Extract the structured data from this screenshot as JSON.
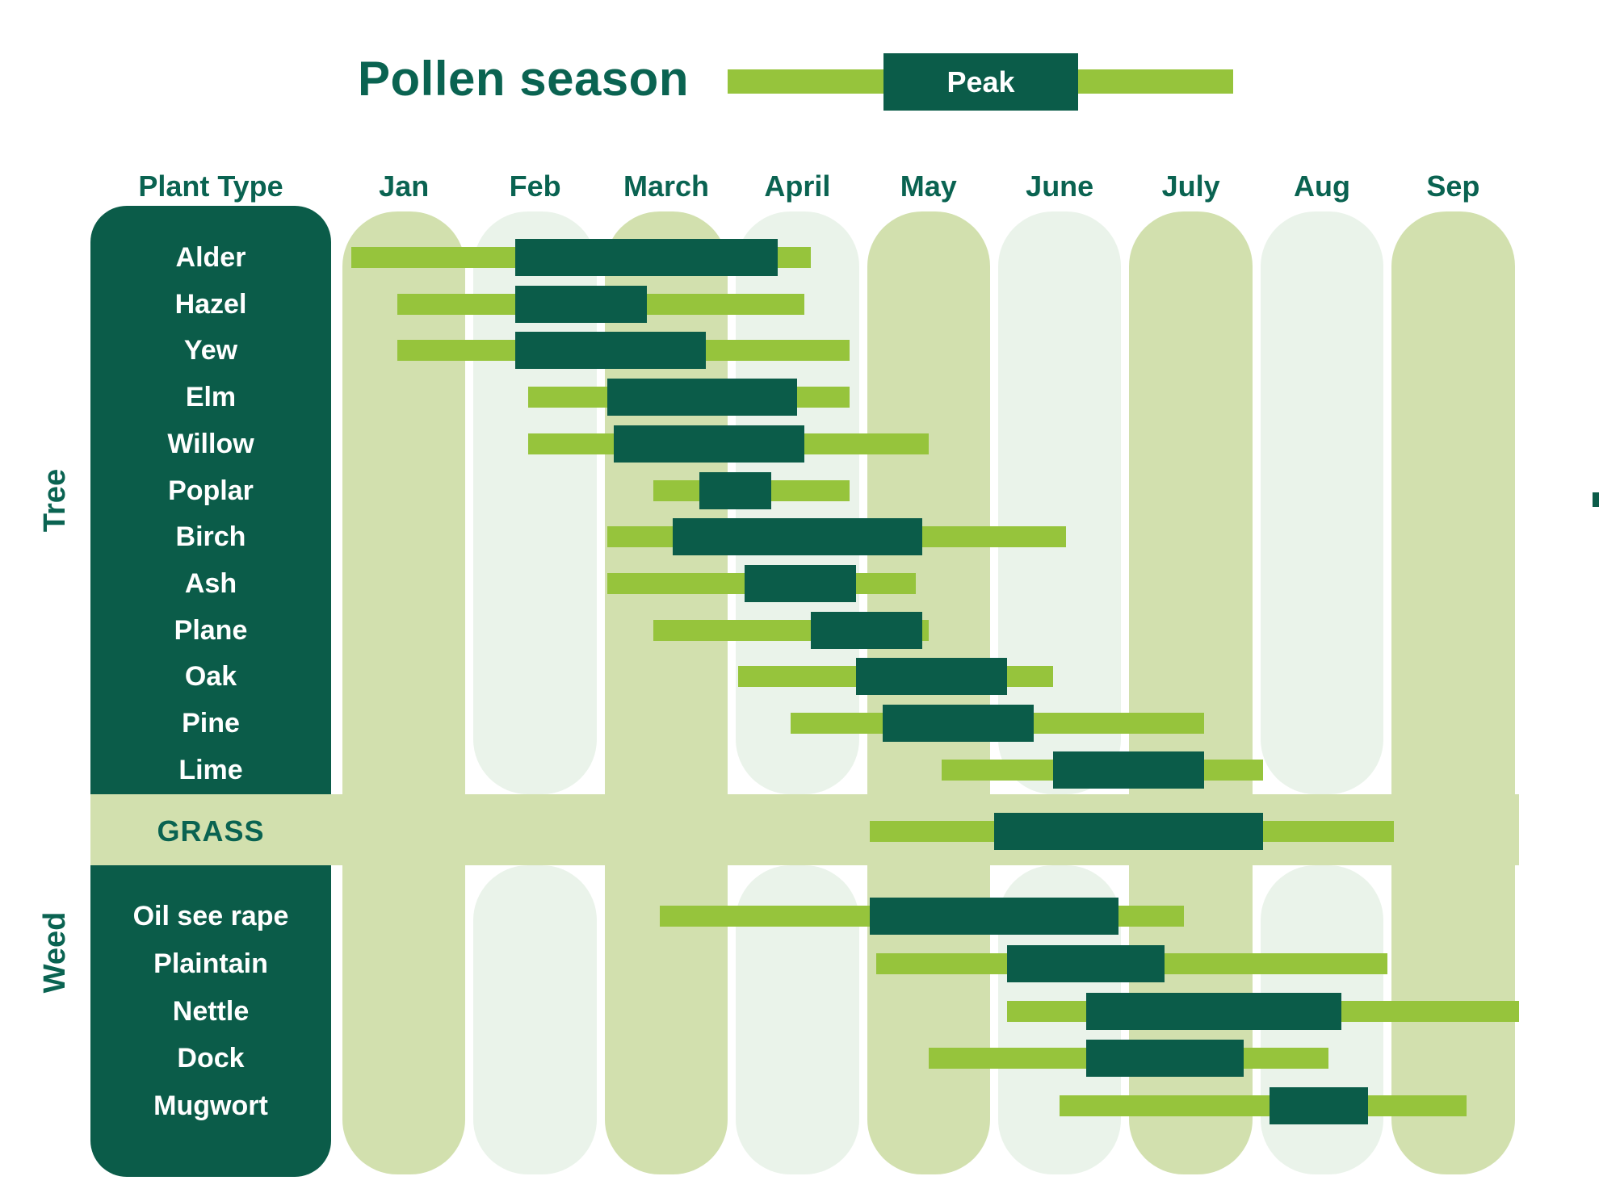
{
  "title": "Pollen season",
  "legend": {
    "peak_label": "Peak"
  },
  "header": {
    "plant_type_label": "Plant Type",
    "months": [
      "Jan",
      "Feb",
      "March",
      "April",
      "May",
      "June",
      "July",
      "Aug",
      "Sep"
    ]
  },
  "groups": {
    "tree_label": "Tree",
    "grass_label": "GRASS",
    "weed_label": "Weed"
  },
  "colors": {
    "dark_green": "#0B5C49",
    "text_green": "#0A6351",
    "season_green": "#96C43C",
    "column_green": "#D2E0AE",
    "column_pale": "#EAF3EA",
    "white": "#FFFFFF"
  },
  "chart_data": {
    "type": "gantt",
    "title": "Pollen season",
    "unit": "month index, 0 = start of Jan, 9 = end of Sep",
    "months": [
      "Jan",
      "Feb",
      "March",
      "April",
      "May",
      "June",
      "July",
      "Aug",
      "Sep"
    ],
    "legend": {
      "season_bar": "pollen season (light green)",
      "peak_bar": "Peak (dark green)"
    },
    "groups": [
      {
        "name": "Tree",
        "rows": [
          {
            "label": "Alder",
            "season": [
              0.1,
              3.6
            ],
            "peak": [
              1.35,
              3.35
            ]
          },
          {
            "label": "Hazel",
            "season": [
              0.45,
              3.55
            ],
            "peak": [
              1.35,
              2.35
            ]
          },
          {
            "label": "Yew",
            "season": [
              0.45,
              3.9
            ],
            "peak": [
              1.35,
              2.8
            ]
          },
          {
            "label": "Elm",
            "season": [
              1.45,
              3.9
            ],
            "peak": [
              2.05,
              3.5
            ]
          },
          {
            "label": "Willow",
            "season": [
              1.45,
              4.5
            ],
            "peak": [
              2.1,
              3.55
            ]
          },
          {
            "label": "Poplar",
            "season": [
              2.4,
              3.9
            ],
            "peak": [
              2.75,
              3.3
            ]
          },
          {
            "label": "Birch",
            "season": [
              2.05,
              5.55
            ],
            "peak": [
              2.55,
              4.45
            ]
          },
          {
            "label": "Ash",
            "season": [
              2.05,
              4.4
            ],
            "peak": [
              3.1,
              3.95
            ]
          },
          {
            "label": "Plane",
            "season": [
              2.4,
              4.5
            ],
            "peak": [
              3.6,
              4.45
            ]
          },
          {
            "label": "Oak",
            "season": [
              3.05,
              5.45
            ],
            "peak": [
              3.95,
              5.1
            ]
          },
          {
            "label": "Pine",
            "season": [
              3.45,
              6.6
            ],
            "peak": [
              4.15,
              5.3
            ]
          },
          {
            "label": "Lime",
            "season": [
              4.6,
              7.05
            ],
            "peak": [
              5.45,
              6.6
            ]
          }
        ]
      },
      {
        "name": "Grass",
        "rows": [
          {
            "label": "GRASS",
            "season": [
              4.05,
              8.05
            ],
            "peak": [
              5.0,
              7.05
            ]
          }
        ]
      },
      {
        "name": "Weed",
        "rows": [
          {
            "label": "Oil see rape",
            "season": [
              2.45,
              6.45
            ],
            "peak": [
              4.05,
              5.95
            ]
          },
          {
            "label": "Plaintain",
            "season": [
              4.1,
              8.0
            ],
            "peak": [
              5.1,
              6.3
            ]
          },
          {
            "label": "Nettle",
            "season": [
              5.1,
              9.0
            ],
            "peak": [
              5.7,
              7.65
            ]
          },
          {
            "label": "Dock",
            "season": [
              4.5,
              7.55
            ],
            "peak": [
              5.7,
              6.9
            ]
          },
          {
            "label": "Mugwort",
            "season": [
              5.5,
              8.6
            ],
            "peak": [
              7.1,
              7.85
            ]
          }
        ]
      }
    ]
  }
}
